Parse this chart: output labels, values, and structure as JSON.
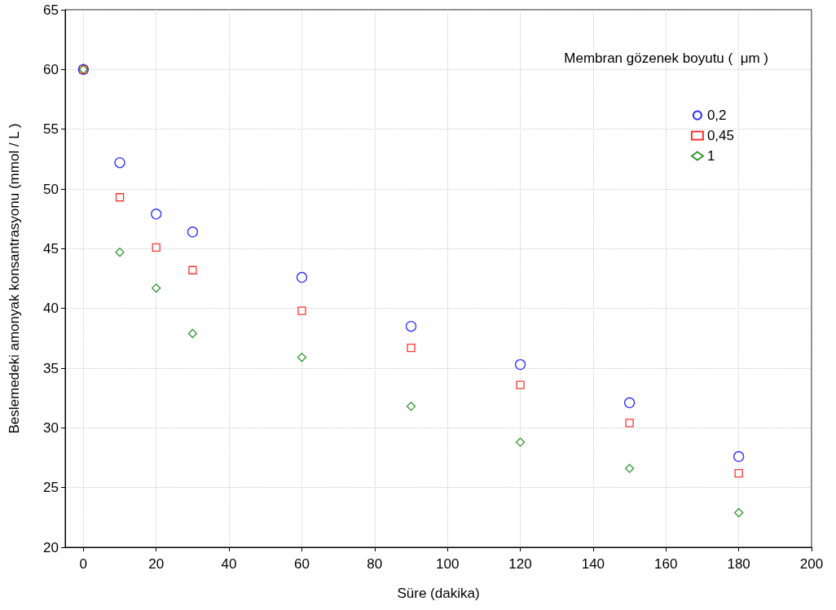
{
  "chart_data": {
    "type": "scatter",
    "xlabel": "Süre (dakika)",
    "ylabel": "Beslemedeki amonyak konsantrasyonu (mmol / L )",
    "legend_title": "Membran gözenek boyutu (  μm )",
    "x": [
      0,
      10,
      20,
      30,
      60,
      90,
      120,
      150,
      180
    ],
    "xlim": [
      -5,
      200
    ],
    "xticks": [
      0,
      20,
      40,
      60,
      80,
      100,
      120,
      140,
      160,
      180,
      200
    ],
    "ylim": [
      20,
      65
    ],
    "yticks": [
      20,
      25,
      30,
      35,
      40,
      45,
      50,
      55,
      60,
      65
    ],
    "grid": true,
    "legend": "top right",
    "series": [
      {
        "name": "0,2",
        "color": "#0000ff",
        "marker": "circle",
        "values": [
          60,
          52.2,
          47.9,
          46.4,
          42.6,
          38.5,
          35.3,
          32.1,
          27.6
        ]
      },
      {
        "name": "0,45",
        "color": "#ff0000",
        "marker": "square",
        "values": [
          60,
          49.3,
          45.1,
          43.2,
          39.8,
          36.7,
          33.6,
          30.4,
          26.2
        ]
      },
      {
        "name": "1",
        "color": "#008000",
        "marker": "diamond",
        "values": [
          60,
          44.7,
          41.7,
          37.9,
          35.9,
          31.8,
          28.8,
          26.6,
          22.9
        ]
      }
    ]
  }
}
